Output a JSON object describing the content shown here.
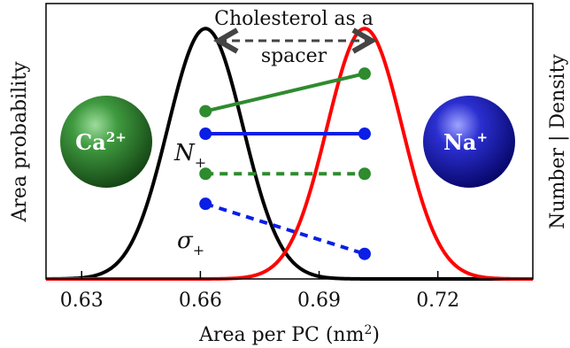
{
  "chart_data": {
    "type": "line",
    "xlabel": "Area per PC (nm",
    "xlabel_sup": "2",
    "xlabel_close": ")",
    "ylabel_left": "Area probability",
    "ylabel_right": "Number | Density",
    "xlim": [
      0.621,
      0.744
    ],
    "ylim": [
      0,
      1.1
    ],
    "xticks": [
      0.63,
      0.66,
      0.69,
      0.72
    ],
    "xtick_labels": [
      "0.63",
      "0.66",
      "0.69",
      "0.72"
    ],
    "distributions": [
      {
        "id": "ca",
        "color": "#000000",
        "mean": 0.6613,
        "sd": 0.0095,
        "amplitude": 1.0
      },
      {
        "id": "na",
        "color": "#ff0000",
        "mean": 0.7015,
        "sd": 0.0095,
        "amplitude": 1.0
      }
    ],
    "markers": [
      {
        "id": "N-plus-green",
        "color": "#2e8b2e",
        "style": "solid",
        "x": [
          0.6613,
          0.7015
        ],
        "y": [
          0.67,
          0.82
        ]
      },
      {
        "id": "N-plus-blue",
        "color": "#0a1ee6",
        "style": "solid",
        "x": [
          0.6613,
          0.7015
        ],
        "y": [
          0.58,
          0.58
        ]
      },
      {
        "id": "sigma-plus-green",
        "color": "#2e8b2e",
        "style": "dashed",
        "x": [
          0.6613,
          0.7015
        ],
        "y": [
          0.42,
          0.42
        ]
      },
      {
        "id": "sigma-plus-blue",
        "color": "#0a1ee6",
        "style": "dashed",
        "x": [
          0.6613,
          0.7015
        ],
        "y": [
          0.3,
          0.1
        ]
      }
    ],
    "annotations": {
      "spacer_line1": "Cholesterol as a",
      "spacer_line2": "spacer",
      "n_plus_main": "N",
      "n_plus_sub": "+",
      "sigma_plus_main": "σ",
      "sigma_plus_sub": "+"
    },
    "ions": {
      "ca": {
        "label": "Ca",
        "charge": "2+",
        "color": "#2b6e2b"
      },
      "na": {
        "label": "Na",
        "charge": "+",
        "color": "#1a1aa8"
      }
    },
    "grid": false
  }
}
